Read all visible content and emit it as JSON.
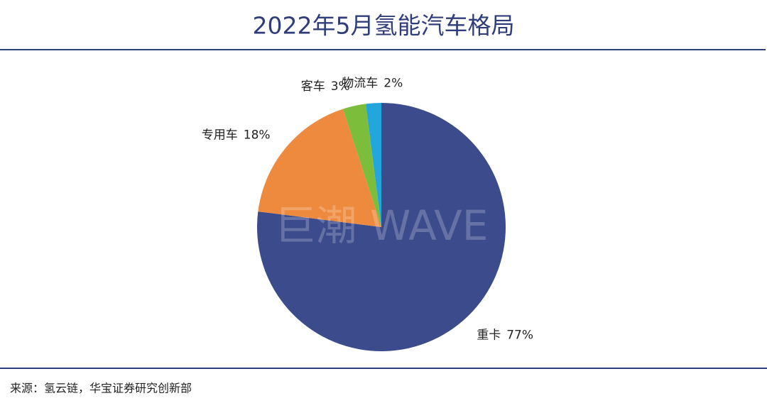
{
  "chart_data": {
    "type": "pie",
    "title": "2022年5月氢能汽车格局",
    "categories": [
      "重卡",
      "专用车",
      "客车",
      "物流车"
    ],
    "values": [
      77,
      18,
      3,
      2
    ],
    "value_labels": [
      "77%",
      "18%",
      "3%",
      "2%"
    ],
    "colors": [
      "#3c4b8c",
      "#ed8a3e",
      "#7cbe3c",
      "#22a6dc"
    ],
    "watermark": "巨潮 WAVE",
    "source": "来源：氢云链，华宝证券研究创新部"
  }
}
